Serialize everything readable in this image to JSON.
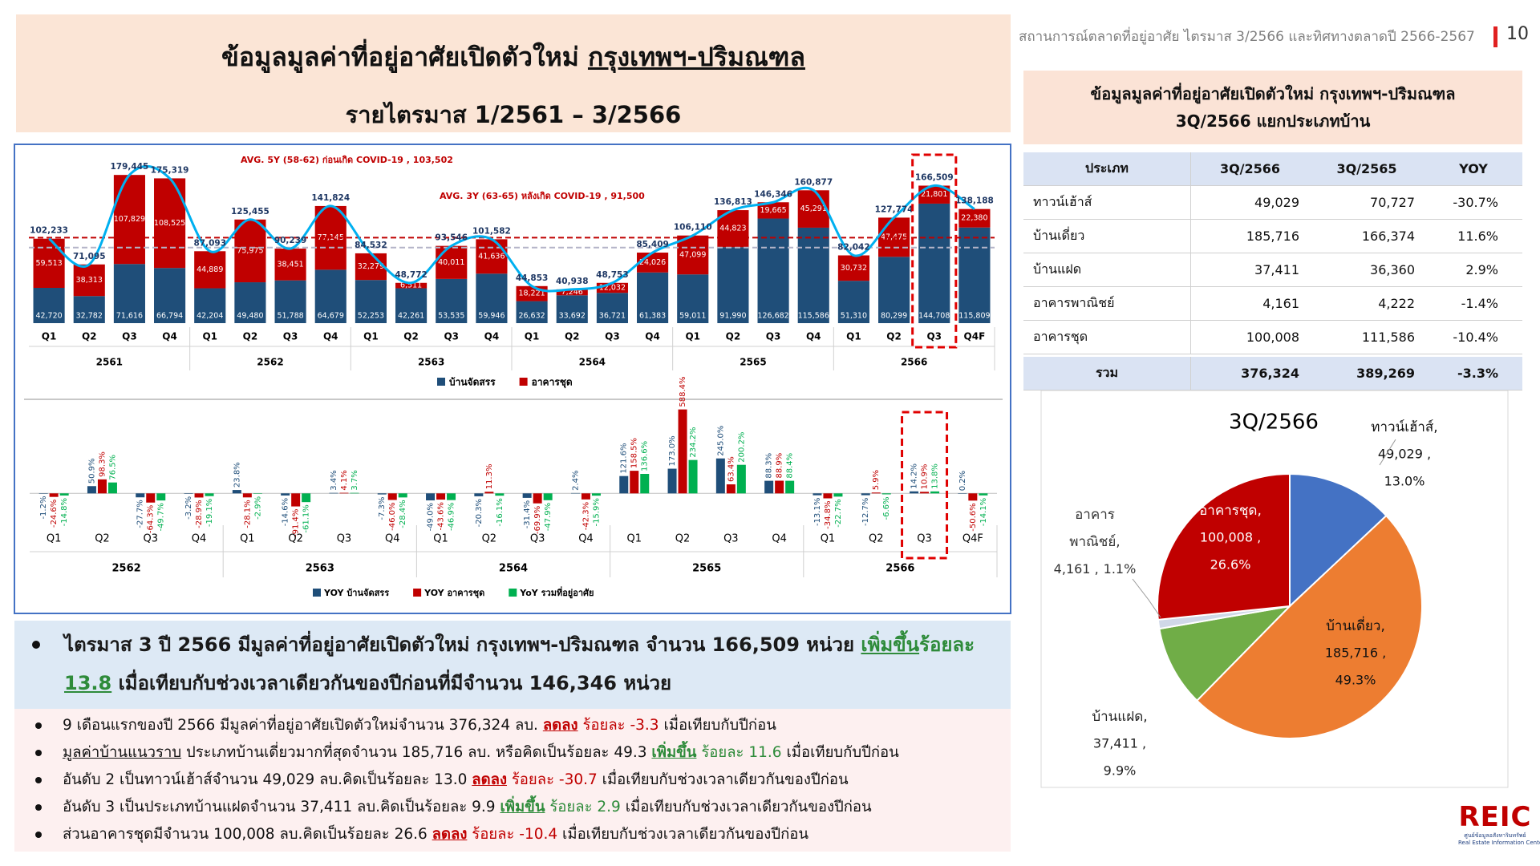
{
  "header": {
    "title": "ข้อมูลมูลค่าที่อยู่อาศัยเปิดตัวใหม่ ",
    "title_underlined": "กรุงเทพฯ-ปริมณฑล",
    "subtitle": "รายไตรมาส 1/2561 – 3/2566"
  },
  "top_right": {
    "caption": "สถานการณ์ตลาดที่อยู่อาศัย ไตรมาส 3/2566 และทิศทางตลาดปี 2566-2567",
    "page": "10"
  },
  "panel": {
    "title_lines": [
      "ข้อมูลมูลค่าที่อยู่อาศัยเปิดตัวใหม่ กรุงเทพฯ-ปริมณฑล",
      "3Q/2566 แยกประเภทบ้าน"
    ]
  },
  "table": {
    "header": [
      "ประเภท",
      "3Q/2566",
      "3Q/2565",
      "YOY"
    ],
    "rows": [
      [
        "ทาวน์เฮ้าส์",
        "49,029",
        "70,727",
        "-30.7%"
      ],
      [
        "บ้านเดี่ยว",
        "185,716",
        "166,374",
        "11.6%"
      ],
      [
        "บ้านแฝด",
        "37,411",
        "36,360",
        "2.9%"
      ],
      [
        "อาคารพาณิชย์",
        "4,161",
        "4,222",
        "-1.4%"
      ],
      [
        "อาคารชุด",
        "100,008",
        "111,586",
        "-10.4%"
      ]
    ],
    "total": [
      "รวม",
      "376,324",
      "389,269",
      "-3.3%"
    ]
  },
  "chart_data": [
    {
      "type": "stacked-bar",
      "groups": [
        "2561",
        "2562",
        "2563",
        "2564",
        "2565",
        "2566"
      ],
      "categories": [
        "Q1",
        "Q2",
        "Q3",
        "Q4",
        "Q1",
        "Q2",
        "Q3",
        "Q4",
        "Q1",
        "Q2",
        "Q3",
        "Q4",
        "Q1",
        "Q2",
        "Q3",
        "Q4",
        "Q1",
        "Q2",
        "Q3",
        "Q4",
        "Q1",
        "Q2",
        "Q3",
        "Q4F"
      ],
      "series": [
        {
          "name": "บ้านจัดสรร",
          "color": "#1f4e79",
          "values": [
            42720,
            32782,
            71616,
            66794,
            42204,
            49480,
            51788,
            64679,
            52253,
            42261,
            53535,
            59946,
            26632,
            33692,
            36721,
            61383,
            59011,
            91990,
            126682,
            115586,
            51310,
            80299,
            144708,
            115809
          ],
          "value_labels": [
            "42,720",
            "32,782",
            "71,616",
            "66,794",
            "42,204",
            "49,480",
            "51,788",
            "64,679",
            "52,253",
            "42,261",
            "53,535",
            "59,946",
            "26,632",
            "33,692",
            "36,721",
            "61,383",
            "59,011",
            "91,990",
            "126,682",
            "115,586",
            "51,310",
            "80,299",
            "144,708",
            "115,809"
          ]
        },
        {
          "name": "อาคารชุด",
          "color": "#c00000",
          "values": [
            59513,
            38313,
            107829,
            108525,
            44889,
            75975,
            38451,
            77145,
            32279,
            6511,
            40011,
            41636,
            18221,
            7246,
            12032,
            24026,
            47099,
            44823,
            19665,
            45291,
            30732,
            47475,
            21801,
            22380
          ],
          "value_labels": [
            "59,513",
            "38,313",
            "107,829",
            "108,525",
            "44,889",
            "75,975",
            "38,451",
            "77,145",
            "32,279",
            "6,511",
            "40,011",
            "41,636",
            "18,221",
            "7,246",
            "12,032",
            "24,026",
            "47,099",
            "44,823",
            "19,665",
            "45,291",
            "30,732",
            "47,475",
            "21,801",
            "22,380"
          ]
        }
      ],
      "totals": [
        102233,
        71095,
        179445,
        175319,
        87093,
        125455,
        90239,
        141824,
        84532,
        48772,
        93546,
        101582,
        44853,
        40938,
        48753,
        85409,
        106110,
        136813,
        146346,
        160877,
        82042,
        127774,
        166509,
        138188
      ],
      "total_labels": [
        "102,233",
        "71,095",
        "179,445",
        "175,319",
        "87,093",
        "125,455",
        "90,239",
        "141,824",
        "84,532",
        "48,772",
        "93,546",
        "101,582",
        "44,853",
        "40,938",
        "48,753",
        "85,409",
        "106,110",
        "136,813",
        "146,346",
        "160,877",
        "82,042",
        "127,774",
        "166,509",
        "138,188"
      ],
      "line_color": "#00b0f0",
      "ylim": [
        0,
        200000
      ],
      "annotations": [
        {
          "text": "AVG. 5Y (58-62) ก่อนเกิด COVID-19 ,  103,502",
          "value": 103502,
          "line_color": "#c00000"
        },
        {
          "text": "AVG. 3Y (63-65) หลังเกิด COVID-19 ,  91,500",
          "value": 91500,
          "line_color": "#b4b4c8"
        }
      ]
    },
    {
      "type": "grouped-bar",
      "groups": [
        "2562",
        "2563",
        "2564",
        "2565",
        "2566"
      ],
      "categories": [
        "Q1",
        "Q2",
        "Q3",
        "Q4",
        "Q1",
        "Q2",
        "Q3",
        "Q4",
        "Q1",
        "Q2",
        "Q3",
        "Q4",
        "Q1",
        "Q2",
        "Q3",
        "Q4",
        "Q1",
        "Q2",
        "Q3",
        "Q4F"
      ],
      "series": [
        {
          "name": "YOY บ้านจัดสรร",
          "color": "#1f4e79",
          "values": [
            -1.2,
            50.9,
            -27.7,
            -3.2,
            23.8,
            -14.6,
            3.4,
            -7.3,
            -49.0,
            -20.3,
            -31.4,
            2.4,
            121.6,
            173.0,
            245.0,
            88.3,
            -13.1,
            -12.7,
            14.2,
            0.2
          ],
          "value_labels": [
            "-1.2%",
            "50.9%",
            "-27.7%",
            "-3.2%",
            "23.8%",
            "-14.6%",
            "3.4%",
            "-7.3%",
            "-49.0%",
            "-20.3%",
            "-31.4%",
            "2.4%",
            "121.6%",
            "173.0%",
            "245.0%",
            "88.3%",
            "-13.1%",
            "-12.7%",
            "14.2%",
            "0.2%"
          ]
        },
        {
          "name": "YOY อาคารชุด",
          "color": "#c00000",
          "values": [
            -24.6,
            98.3,
            -64.3,
            -28.9,
            -28.1,
            -91.4,
            4.1,
            -46.0,
            -43.6,
            11.3,
            -69.9,
            -42.3,
            158.5,
            588.4,
            63.4,
            88.9,
            -34.8,
            5.9,
            10.9,
            -50.6
          ],
          "value_labels": [
            "-24.6%",
            "98.3%",
            "-64.3%",
            "-28.9%",
            "-28.1%",
            "-91.4%",
            "4.1%",
            "-46.0%",
            "-43.6%",
            "11.3%",
            "-69.9%",
            "-42.3%",
            "158.5%",
            "588.4%",
            "63.4%",
            "88.9%",
            "-34.8%",
            "5.9%",
            "10.9%",
            "-50.6%"
          ]
        },
        {
          "name": "YoY รวมที่อยู่อาศัย",
          "color": "#00b050",
          "values": [
            -14.8,
            76.5,
            -49.7,
            -19.1,
            -2.9,
            -61.1,
            3.7,
            -28.4,
            -46.9,
            -16.1,
            -47.9,
            -15.9,
            136.6,
            234.2,
            200.2,
            88.4,
            -22.7,
            -6.6,
            13.8,
            -14.1
          ],
          "value_labels": [
            "-14.8%",
            "76.5%",
            "-49.7%",
            "-19.1%",
            "-2.9%",
            "-61.1%",
            "3.7%",
            "-28.4%",
            "-46.9%",
            "-16.1%",
            "-47.9%",
            "-15.9%",
            "136.6%",
            "234.2%",
            "200.2%",
            "88.4%",
            "-22.7%",
            "-6.6%",
            "13.8%",
            "-14.1%"
          ]
        }
      ],
      "ylim": [
        -150,
        620
      ]
    },
    {
      "type": "pie",
      "title": "3Q/2566",
      "labels": [
        "ทาวน์เฮ้าส์,",
        "บ้านเดี่ยว,",
        "บ้านแฝด,",
        "อาคาร พาณิชย์,",
        "อาคารชุด,"
      ],
      "amounts": [
        "49,029 ,",
        "185,716 ,",
        "37,411 ,",
        "4,161 ,",
        "100,008 ,"
      ],
      "values": [
        13.0,
        49.3,
        9.9,
        1.1,
        26.6
      ],
      "value_labels": [
        "13.0%",
        "49.3%",
        "9.9%",
        "1.1%",
        "26.6%"
      ],
      "colors": [
        "#4472c4",
        "#ed7d31",
        "#70ad47",
        "#d0d8e8",
        "#c00000"
      ]
    }
  ],
  "bullets": {
    "main": [
      "ไตรมาส 3 ปี 2566 มีมูลค่าที่อยู่อาศัยเปิดตัวใหม่ กรุงเทพฯ-ปริมณฑล จำนวน  166,509 หน่วย ",
      "เพิ่มขึ้น",
      "ร้อยละ",
      "13.8",
      " เมื่อเทียบกับช่วงเวลาเดียวกันของปีก่อนที่มีจำนวน  146,346 หน่วย"
    ],
    "items": [
      [
        "9 เดือนแรกของปี 2566 มีมูลค่าที่อยู่อาศัยเปิดตัวใหม่จำนวน  376,324 ลบ. ",
        "ลดลง",
        " ร้อยละ -3.3",
        " เมื่อเทียบกับปีก่อน"
      ],
      [
        "มูลค่าบ้านแนวราบ",
        " ประเภทบ้านเดี่ยวมากที่สุดจำนวน  185,716 ลบ.  หรือคิดเป็นร้อยละ 49.3 ",
        "เพิ่มขึ้น",
        " ร้อยละ 11.6",
        " เมื่อเทียบกับปีก่อน"
      ],
      [
        "อันดับ 2 เป็นทาวน์เฮ้าส์จำนวน 49,029 ลบ.คิดเป็นร้อยละ 13.0 ",
        "ลดลง",
        " ร้อยละ -30.7",
        "  เมื่อเทียบกับช่วงเวลาเดียวกันของปีก่อน"
      ],
      [
        "อันดับ 3 เป็นประเภทบ้านแฝดจำนวน 37,411 ลบ.คิดเป็นร้อยละ 9.9 ",
        "เพิ่มขึ้น",
        " ร้อยละ 2.9",
        " เมื่อเทียบกับช่วงเวลาเดียวกันของปีก่อน"
      ],
      [
        "ส่วนอาคารชุดมีจำนวน  100,008 ลบ.คิดเป็นร้อยละ 26.6  ",
        "ลดลง",
        " ร้อยละ -10.4",
        " เมื่อเทียบกับช่วงเวลาเดียวกันของปีก่อน"
      ]
    ]
  },
  "logo": {
    "mark": "REIC",
    "name_th": "ศูนย์ข้อมูลอสังหาริมทรัพย์",
    "name_en": "Real Estate Information Center"
  }
}
